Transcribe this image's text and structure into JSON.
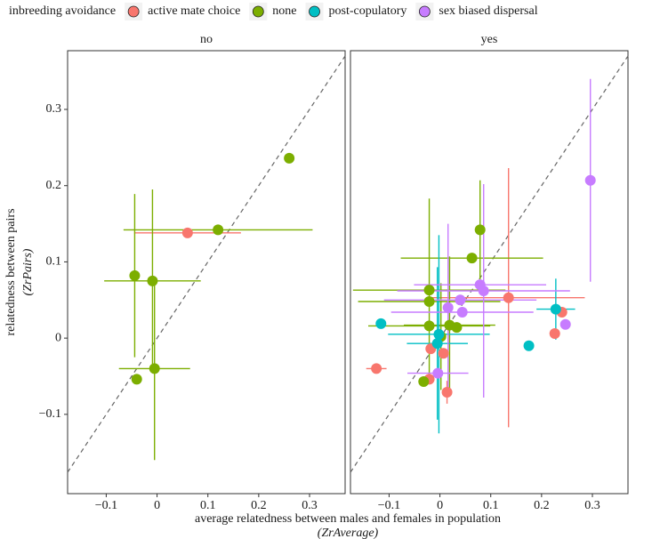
{
  "chart_data": {
    "type": "scatter",
    "legend_title": "inbreeding avoidance",
    "x_label": [
      "average relatedness between males and females in population",
      "(ZrAverage)"
    ],
    "y_label": [
      "relatedness between pairs",
      "(ZrPairs)"
    ],
    "xlim": [
      -0.176,
      0.37
    ],
    "ylim": [
      -0.204,
      0.377
    ],
    "xticks": [
      {
        "value": -0.1,
        "label": "−0.1"
      },
      0,
      0.1,
      0.2,
      0.3
    ],
    "yticks": [
      {
        "value": -0.1,
        "label": "−0.1"
      },
      0,
      0.1,
      0.2,
      0.3
    ],
    "diagonal": true,
    "legend": "top",
    "series": [
      {
        "name": "active mate choice",
        "color": "#F8766D"
      },
      {
        "name": "none",
        "color": "#7CAE00"
      },
      {
        "name": "post-copulatory",
        "color": "#00BFC4"
      },
      {
        "name": "sex biased dispersal",
        "color": "#C77CFF"
      }
    ],
    "panels": [
      {
        "title": "no",
        "series": [
          {
            "x": [
              0.06
            ],
            "values": [
              0.138
            ],
            "x_error": [
              0.105
            ],
            "y_error": [
              null
            ]
          },
          {
            "x": [
              0.26,
              0.12,
              -0.044,
              -0.009,
              -0.005,
              -0.04
            ],
            "values": [
              0.236,
              0.142,
              0.082,
              0.075,
              -0.04,
              -0.054
            ],
            "x_error": [
              null,
              0.186,
              null,
              0.095,
              0.07,
              null
            ],
            "y_error": [
              null,
              null,
              0.107,
              0.12,
              0.12,
              null
            ]
          },
          {
            "x": [],
            "values": [],
            "x_error": [],
            "y_error": []
          },
          {
            "x": [],
            "values": [],
            "x_error": [],
            "y_error": []
          }
        ]
      },
      {
        "title": "yes",
        "series": [
          {
            "x": [
              -0.125,
              0.135,
              0.24,
              0.226,
              0.014,
              -0.018,
              -0.021,
              0.007
            ],
            "values": [
              -0.04,
              0.053,
              0.034,
              0.006,
              -0.071,
              -0.014,
              -0.054,
              -0.02
            ],
            "x_error": [
              0.02,
              0.15,
              null,
              null,
              null,
              null,
              null,
              null
            ],
            "y_error": [
              null,
              0.17,
              null,
              null,
              0.015,
              null,
              null,
              null
            ]
          },
          {
            "x": [
              0.079,
              0.063,
              -0.021,
              -0.021,
              -0.021,
              0.019,
              0.033,
              -0.032,
              0.002
            ],
            "values": [
              0.142,
              0.105,
              0.063,
              0.048,
              0.016,
              0.017,
              0.014,
              -0.057,
              0.002
            ],
            "x_error": [
              null,
              0.14,
              0.15,
              0.14,
              0.12,
              0.09,
              null,
              null,
              null
            ],
            "y_error": [
              0.065,
              null,
              0.12,
              null,
              null,
              0.09,
              null,
              null,
              0.07
            ]
          },
          {
            "x": [
              -0.116,
              -0.005,
              -0.002,
              0.175,
              0.228
            ],
            "values": [
              0.019,
              -0.007,
              0.005,
              -0.01,
              0.038
            ],
            "x_error": [
              null,
              0.06,
              0.1,
              null,
              0.038
            ],
            "y_error": [
              null,
              0.1,
              0.13,
              null,
              0.04
            ]
          },
          {
            "x": [
              0.296,
              0.079,
              0.086,
              0.04,
              0.044,
              0.016,
              0.247,
              -0.004
            ],
            "values": [
              0.207,
              0.07,
              0.062,
              0.05,
              0.034,
              0.04,
              0.018,
              -0.046
            ],
            "x_error": [
              null,
              0.13,
              0.17,
              0.15,
              0.14,
              null,
              null,
              0.06
            ],
            "y_error": [
              0.133,
              null,
              0.14,
              null,
              null,
              0.11,
              null,
              null
            ]
          }
        ]
      }
    ]
  }
}
